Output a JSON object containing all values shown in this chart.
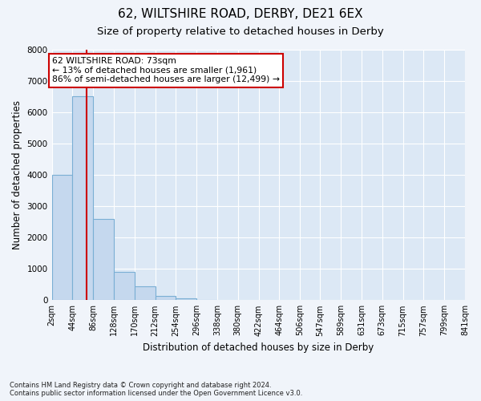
{
  "title1": "62, WILTSHIRE ROAD, DERBY, DE21 6EX",
  "title2": "Size of property relative to detached houses in Derby",
  "xlabel": "Distribution of detached houses by size in Derby",
  "ylabel": "Number of detached properties",
  "footnote1": "Contains HM Land Registry data © Crown copyright and database right 2024.",
  "footnote2": "Contains public sector information licensed under the Open Government Licence v3.0.",
  "bar_edges": [
    2,
    44,
    86,
    128,
    170,
    212,
    254,
    296,
    338,
    380,
    422,
    464,
    506,
    547,
    589,
    631,
    673,
    715,
    757,
    799,
    841
  ],
  "bar_heights": [
    4000,
    6500,
    2600,
    900,
    450,
    130,
    60,
    10,
    0,
    0,
    0,
    0,
    0,
    0,
    0,
    0,
    0,
    0,
    0,
    0
  ],
  "bar_color": "#c5d8ee",
  "bar_edge_color": "#7aafd4",
  "property_size": 73,
  "property_label": "62 WILTSHIRE ROAD: 73sqm",
  "annotation_line1": "← 13% of detached houses are smaller (1,961)",
  "annotation_line2": "86% of semi-detached houses are larger (12,499) →",
  "red_line_color": "#cc0000",
  "annotation_box_color": "#ffffff",
  "annotation_box_edge": "#cc0000",
  "ylim": [
    0,
    8000
  ],
  "yticks": [
    0,
    1000,
    2000,
    3000,
    4000,
    5000,
    6000,
    7000,
    8000
  ],
  "bg_color": "#f0f4fa",
  "plot_bg_color": "#dce8f5",
  "grid_color": "#ffffff",
  "title1_fontsize": 11,
  "title2_fontsize": 9.5,
  "tick_label_fontsize": 7,
  "axis_label_fontsize": 8.5,
  "annotation_fontsize": 7.8,
  "footnote_fontsize": 6.0
}
